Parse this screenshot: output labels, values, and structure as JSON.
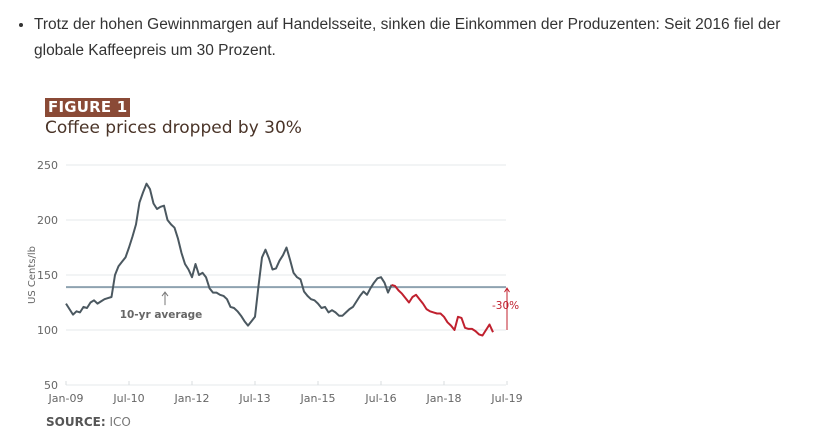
{
  "text": {
    "bullet": "Trotz der hohen Gewinnmargen auf Handelsseite, sinken die Einkommen der Produzenten: Seit 2016 fiel der globale Kaffeepreis um 30 Prozent."
  },
  "figure": {
    "label": "FIGURE 1",
    "title": "Coffee prices dropped by 30%",
    "source_label": "SOURCE:",
    "source_value": "ICO"
  },
  "colors": {
    "line": "#4b5860",
    "decline": "#c0202e",
    "average": "#8ea2b0",
    "grid": "#e6e9eb",
    "label_bg": "#8a4a36"
  },
  "chart_data": {
    "type": "line",
    "title": "Coffee prices dropped by 30%",
    "xlabel": "",
    "ylabel": "US Cents/lb",
    "ylim": [
      50,
      250
    ],
    "yticks": [
      50,
      100,
      150,
      200,
      250
    ],
    "xticks": [
      "Jan-09",
      "Jul-10",
      "Jan-12",
      "Jul-13",
      "Jan-15",
      "Jul-16",
      "Jan-18",
      "Jul-19"
    ],
    "grid": true,
    "x_start": "Jan-09",
    "x_step": "month",
    "average": {
      "value": 139,
      "label": "10-yr average"
    },
    "annotation": {
      "text": "-30%",
      "from": 139,
      "to": 100
    },
    "decline_start_index": 93,
    "values": [
      124,
      119,
      114,
      117,
      116,
      121,
      120,
      125,
      127,
      124,
      126,
      128,
      129,
      130,
      150,
      158,
      162,
      166,
      175,
      185,
      196,
      216,
      225,
      233,
      228,
      215,
      210,
      212,
      213,
      200,
      196,
      193,
      183,
      170,
      160,
      155,
      148,
      160,
      150,
      152,
      148,
      138,
      134,
      134,
      132,
      131,
      128,
      121,
      120,
      117,
      113,
      108,
      104,
      108,
      112,
      140,
      166,
      173,
      165,
      155,
      156,
      163,
      168,
      175,
      164,
      152,
      148,
      146,
      135,
      131,
      128,
      127,
      124,
      120,
      121,
      116,
      118,
      116,
      113,
      113,
      116,
      119,
      121,
      126,
      131,
      135,
      132,
      138,
      143,
      147,
      148,
      143,
      134,
      141,
      140,
      136,
      133,
      129,
      125,
      130,
      132,
      128,
      124,
      119,
      117,
      116,
      115,
      115,
      112,
      107,
      104,
      100,
      112,
      111,
      102,
      101,
      101,
      99,
      96,
      95,
      100,
      105,
      98
    ]
  }
}
